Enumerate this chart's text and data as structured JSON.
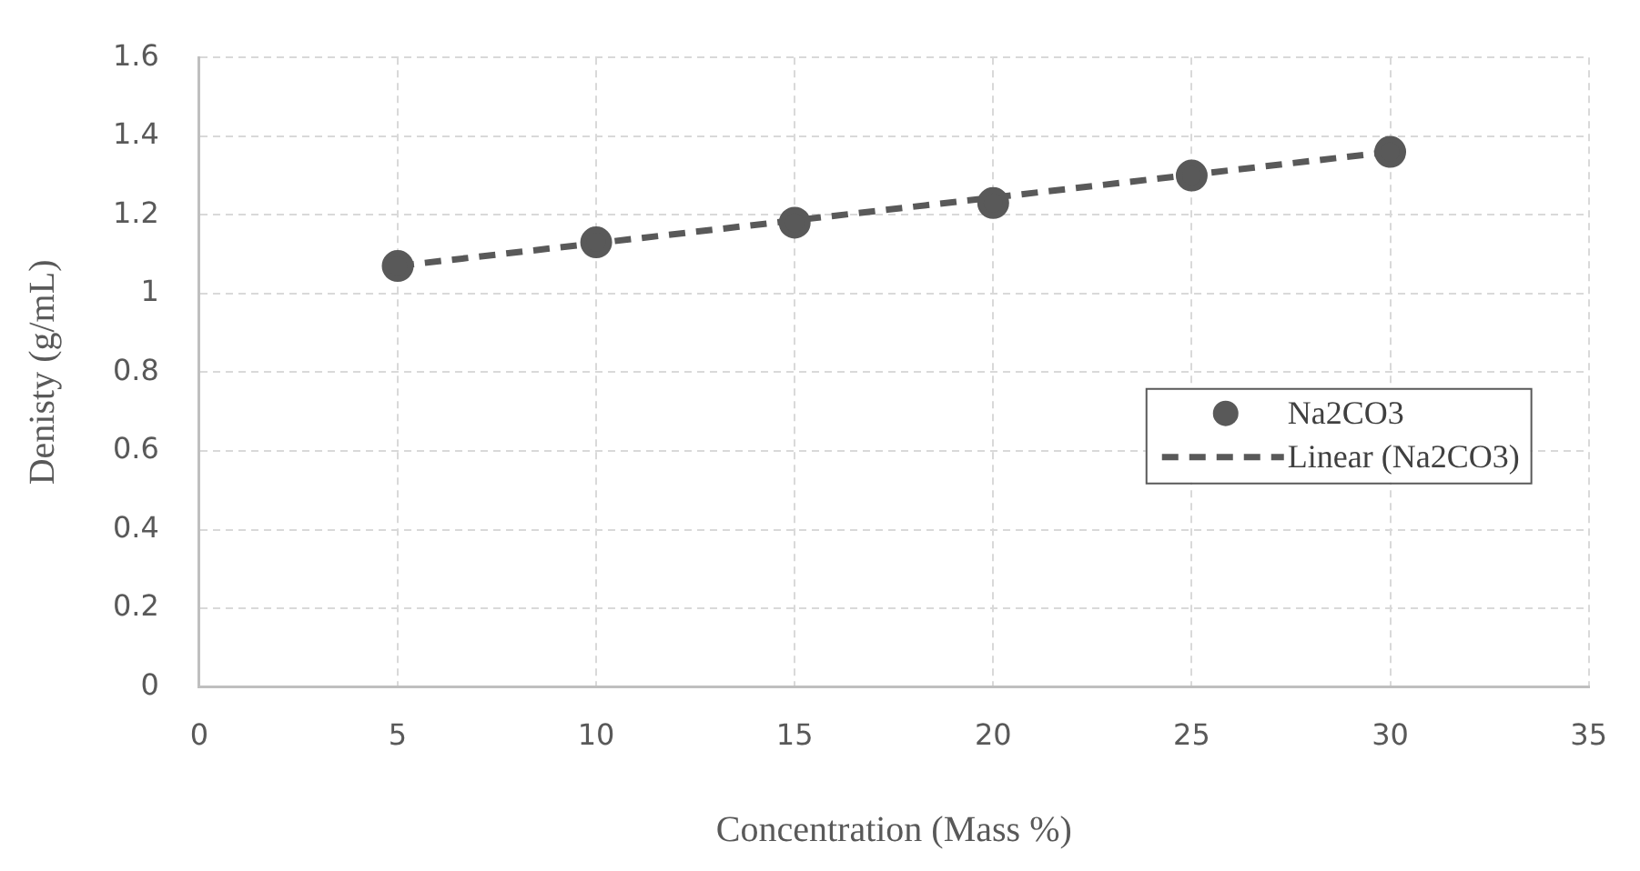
{
  "chart_data": {
    "type": "scatter",
    "xlabel": "Concentration (Mass %)",
    "ylabel": "Denisty (g/mL)",
    "x": [
      5,
      10,
      15,
      20,
      25,
      30
    ],
    "series": [
      {
        "name": "Na2CO3",
        "color": "#595959",
        "marker": "circle",
        "values": [
          1.07,
          1.13,
          1.18,
          1.23,
          1.3,
          1.36
        ]
      },
      {
        "name": "Linear (Na2CO3)",
        "type": "line",
        "color": "#595959",
        "line_style": "dashed",
        "marker": "none",
        "x": [
          5,
          30
        ],
        "values": [
          1.07,
          1.36
        ]
      }
    ],
    "xlim": [
      0,
      35
    ],
    "xticks": [
      0,
      5,
      10,
      15,
      20,
      25,
      30,
      35
    ],
    "ylim": [
      0,
      1.6
    ],
    "yticks": [
      0,
      0.2,
      0.4,
      0.6,
      0.8,
      1,
      1.2,
      1.4,
      1.6
    ],
    "grid": true,
    "legend": "right"
  }
}
